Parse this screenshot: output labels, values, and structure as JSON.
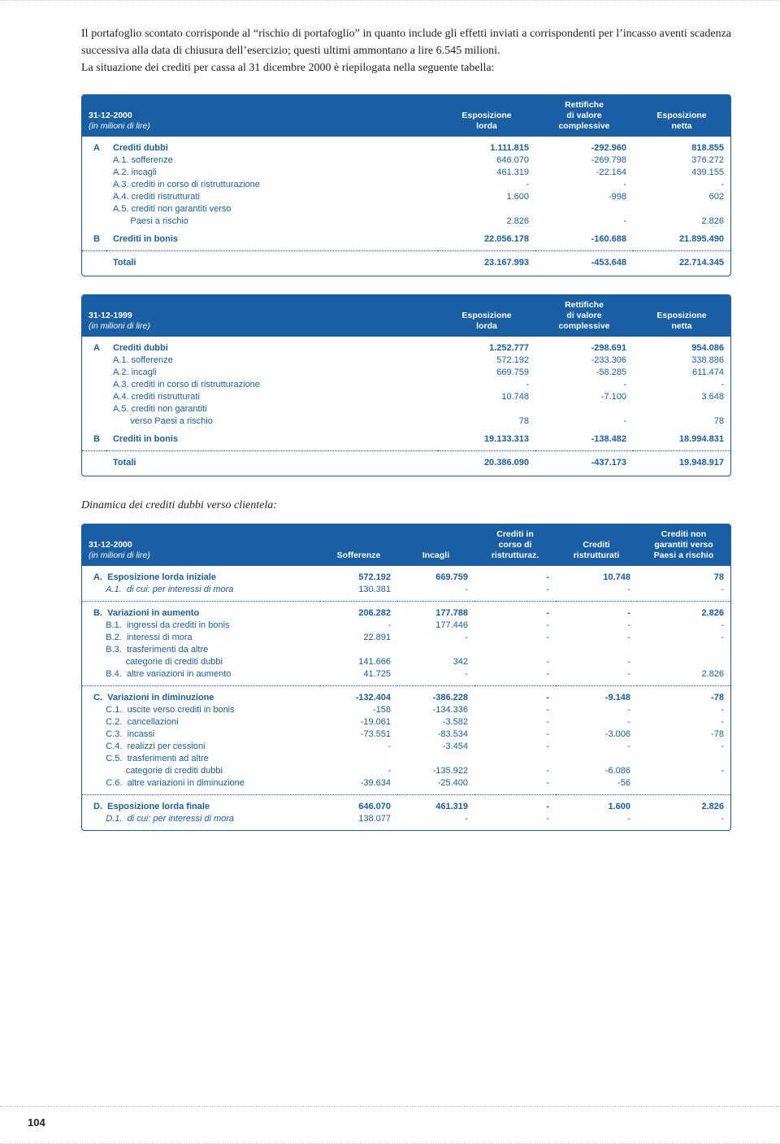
{
  "intro": "Il portafoglio scontato corrisponde al “rischio di portafoglio” in quanto include gli effetti inviati a corrispondenti per l’incasso aventi scadenza successiva alla data di chiusura dell’esercizio; questi ultimi ammontano a lire 6.545 milioni.\nLa situazione dei crediti per cassa al 31 dicembre 2000 è riepilogata nella seguente tabella:",
  "t1": {
    "h_date": "31-12-2000",
    "h_unit": "(in milioni di lire)",
    "h_c1": "Esposizione\nlorda",
    "h_c2": "Rettifiche\ndi valore\ncomplessive",
    "h_c3": "Esposizione\nnetta",
    "rows": [
      {
        "k": "A",
        "l": "Crediti dubbi",
        "c1": "1.111.815",
        "c2": "-292.960",
        "c3": "818.855",
        "b": true,
        "space": true
      },
      {
        "k": "",
        "l": "A.1. sofferenze",
        "c1": "646.070",
        "c2": "-269.798",
        "c3": "376.272"
      },
      {
        "k": "",
        "l": "A.2. incagli",
        "c1": "461.319",
        "c2": "-22.164",
        "c3": "439.155"
      },
      {
        "k": "",
        "l": "A.3. crediti in corso di ristrutturazione",
        "c1": "-",
        "c2": "-",
        "c3": "-"
      },
      {
        "k": "",
        "l": "A.4. crediti ristrutturati",
        "c1": "1.600",
        "c2": "-998",
        "c3": "602"
      },
      {
        "k": "",
        "l": "A.5. crediti non garantiti verso",
        "c1": "",
        "c2": "",
        "c3": ""
      },
      {
        "k": "",
        "l": "       Paesi a rischio",
        "c1": "2.826",
        "c2": "-",
        "c3": "2.826",
        "spaceBelow": true
      },
      {
        "k": "B",
        "l": "Crediti in bonis",
        "c1": "22.056.178",
        "c2": "-160.688",
        "c3": "21.895.490",
        "b": true,
        "spaceBelow": true
      }
    ],
    "total": {
      "l": "Totali",
      "c1": "23.167.993",
      "c2": "-453.648",
      "c3": "22.714.345"
    }
  },
  "t2": {
    "h_date": "31-12-1999",
    "h_unit": "(in milioni di lire)",
    "h_c1": "Esposizione\nlorda",
    "h_c2": "Rettifiche\ndi valore\ncomplessive",
    "h_c3": "Esposizione\nnetta",
    "rows": [
      {
        "k": "A",
        "l": "Crediti dubbi",
        "c1": "1.252.777",
        "c2": "-298.691",
        "c3": "954.086",
        "b": true,
        "space": true
      },
      {
        "k": "",
        "l": "A.1. sofferenze",
        "c1": "572.192",
        "c2": "-233.306",
        "c3": "338.886"
      },
      {
        "k": "",
        "l": "A.2. incagli",
        "c1": "669.759",
        "c2": "-58.285",
        "c3": "611.474"
      },
      {
        "k": "",
        "l": "A.3. crediti in corso di ristrutturazione",
        "c1": "-",
        "c2": "-",
        "c3": "-"
      },
      {
        "k": "",
        "l": "A.4. crediti ristrutturati",
        "c1": "10.748",
        "c2": "-7.100",
        "c3": "3.648"
      },
      {
        "k": "",
        "l": "A.5. crediti non garantiti",
        "c1": "",
        "c2": "",
        "c3": ""
      },
      {
        "k": "",
        "l": "       verso Paesi a rischio",
        "c1": "78",
        "c2": "-",
        "c3": "78",
        "spaceBelow": true
      },
      {
        "k": "B",
        "l": "Crediti in bonis",
        "c1": "19.133.313",
        "c2": "-138.482",
        "c3": "18.994.831",
        "b": true,
        "spaceBelow": true
      }
    ],
    "total": {
      "l": "Totali",
      "c1": "20.386.090",
      "c2": "-437.173",
      "c3": "19.948.917"
    }
  },
  "dyn_title": "Dinamica dei crediti dubbi verso clientela:",
  "t3": {
    "h_date": "31-12-2000",
    "h_unit": "(in milioni di lire)",
    "h_c1": "Sofferenze",
    "h_c2": "Incagli",
    "h_c3": "Crediti in\ncorso di\nristrutturaz.",
    "h_c4": "Crediti\nristrutturati",
    "h_c5": "Crediti non\ngarantiti verso\nPaesi a rischio",
    "groups": [
      [
        {
          "l": "A.  Esposizione lorda iniziale",
          "c": [
            "572.192",
            "669.759",
            "-",
            "10.748",
            "78"
          ],
          "b": true,
          "space": true
        },
        {
          "l": "     A.1.  di cui: per interessi di mora",
          "c": [
            "130.381",
            "-",
            "-",
            "-",
            "-"
          ],
          "it": true,
          "spaceBelow": true
        }
      ],
      [
        {
          "l": "B.  Variazioni in aumento",
          "c": [
            "206.282",
            "177.788",
            "-",
            "-",
            "2.826"
          ],
          "b": true,
          "space": true
        },
        {
          "l": "     B.1.  ingressi da crediti in bonis",
          "c": [
            "-",
            "177.446",
            "-",
            "-",
            "-"
          ]
        },
        {
          "l": "     B.2.  interessi di mora",
          "c": [
            "22.891",
            "-",
            "-",
            "-",
            "-"
          ]
        },
        {
          "l": "     B.3.  trasferimenti da altre",
          "c": [
            "",
            "",
            "",
            "",
            ""
          ]
        },
        {
          "l": "             categorie di crediti dubbi",
          "c": [
            "141.666",
            "342",
            "-",
            "-",
            ""
          ]
        },
        {
          "l": "     B.4.  altre variazioni in aumento",
          "c": [
            "41.725",
            "-",
            "-",
            "-",
            "2.826"
          ],
          "spaceBelow": true
        }
      ],
      [
        {
          "l": "C.  Variazioni in diminuzione",
          "c": [
            "-132.404",
            "-386.228",
            "-",
            "-9.148",
            "-78"
          ],
          "b": true,
          "space": true
        },
        {
          "l": "     C.1.  uscite verso crediti in bonis",
          "c": [
            "-158",
            "-134.336",
            "-",
            "-",
            "-"
          ]
        },
        {
          "l": "     C.2.  cancellazioni",
          "c": [
            "-19.061",
            "-3.582",
            "-",
            "-",
            "-"
          ]
        },
        {
          "l": "     C.3.  incassi",
          "c": [
            "-73.551",
            "-83.534",
            "-",
            "-3.006",
            "-78"
          ]
        },
        {
          "l": "     C.4.  realizzi per cessioni",
          "c": [
            "-",
            "-3.454",
            "-",
            "-",
            "-"
          ]
        },
        {
          "l": "     C.5.  trasferimenti ad altre",
          "c": [
            "",
            "",
            "",
            "",
            ""
          ]
        },
        {
          "l": "             categorie di crediti dubbi",
          "c": [
            "-",
            "-135.922",
            "-",
            "-6.086",
            "-"
          ]
        },
        {
          "l": "     C.6.  altre variazioni in diminuzione",
          "c": [
            "-39.634",
            "-25.400",
            "-",
            "-56",
            ""
          ],
          "spaceBelow": true
        }
      ],
      [
        {
          "l": "D.  Esposizione lorda finale",
          "c": [
            "646.070",
            "461.319",
            "-",
            "1.600",
            "2.826"
          ],
          "b": true,
          "space": true
        },
        {
          "l": "     D.1.  di cui: per interessi di mora",
          "c": [
            "138.077",
            "-",
            "-",
            "-",
            "-"
          ],
          "it": true,
          "spaceBelow": true
        }
      ]
    ]
  },
  "page_num": "104"
}
